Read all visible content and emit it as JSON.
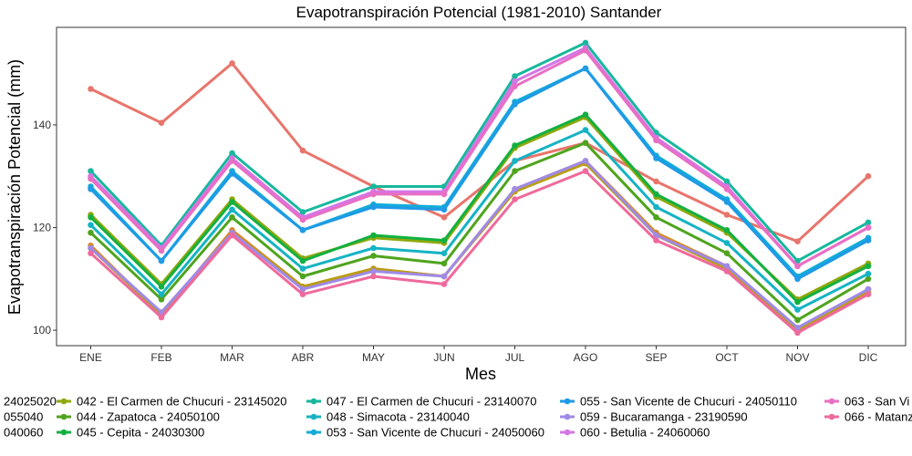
{
  "chart_data": {
    "type": "line",
    "title": "Evapotranspiración Potencial (1981-2010)  Santander",
    "xlabel": "Mes",
    "ylabel": "Evapotranspiración Potencial  (mm)",
    "categories": [
      "ENE",
      "FEB",
      "MAR",
      "ABR",
      "MAY",
      "JUN",
      "JUL",
      "AGO",
      "SEP",
      "OCT",
      "NOV",
      "DIC"
    ],
    "yticks": [
      100,
      120,
      140
    ],
    "ylim": [
      97,
      159
    ],
    "grid": false,
    "legend_position": "bottom",
    "series": [
      {
        "name": "24025020",
        "color": "#e8756c",
        "values": [
          147,
          140.4,
          152,
          135,
          128,
          122,
          133,
          136.5,
          129,
          122.5,
          117.3,
          130
        ]
      },
      {
        "name": "055040",
        "color": "#d98b27",
        "values": [
          116.5,
          103,
          119.5,
          108.5,
          112,
          110.5,
          127.5,
          133,
          119,
          112.5,
          100,
          108
        ]
      },
      {
        "name": "040060",
        "color": "#bb9d13",
        "values": [
          116,
          103,
          119,
          108.5,
          112,
          110.5,
          127,
          132.5,
          118.5,
          112,
          100,
          107.5
        ]
      },
      {
        "name": "042 - El Carmen de Chucuri - 23145020",
        "color": "#90a80e",
        "values": [
          122.5,
          109,
          125.5,
          114,
          118,
          117,
          135.5,
          141.5,
          126,
          119,
          106,
          113
        ]
      },
      {
        "name": "044 - Zapatoca - 24050100",
        "color": "#4fa41d",
        "values": [
          119,
          106,
          122,
          110.5,
          114.5,
          113,
          131,
          136.5,
          122,
          115,
          102,
          110
        ]
      },
      {
        "name": "045 - Cepita - 24030300",
        "color": "#13b041",
        "values": [
          122,
          108.5,
          125,
          113.5,
          118.5,
          117.5,
          136,
          142,
          126.5,
          119.5,
          105.5,
          112.5
        ]
      },
      {
        "name": "047 - El Carmen de Chucuri - 23140070",
        "color": "#17b89d",
        "values": [
          131,
          116.5,
          134.5,
          123,
          128,
          128,
          149.5,
          156,
          138.5,
          129,
          113.5,
          121
        ]
      },
      {
        "name": "048 - Simacota - 23140040",
        "color": "#15b3c4",
        "values": [
          120.5,
          107,
          123.5,
          112,
          116,
          115,
          133,
          139,
          124,
          117,
          104,
          111
        ]
      },
      {
        "name": "053 - San Vicente de Chucuri - 24050060",
        "color": "#12acd8",
        "values": [
          128,
          113.5,
          131,
          119.5,
          124.5,
          124,
          144.5,
          151,
          134,
          125.5,
          110.5,
          118
        ]
      },
      {
        "name": "055 - San Vicente de Chucuri - 24050110",
        "color": "#1f9ae6",
        "values": [
          127.5,
          113.5,
          130.5,
          119.5,
          124,
          123.5,
          144,
          151,
          133.5,
          125,
          110,
          117.5
        ]
      },
      {
        "name": "059 - Bucaramanga - 23190590",
        "color": "#9f8ae8",
        "values": [
          116,
          103.5,
          119,
          108,
          111.5,
          110.5,
          127.5,
          133,
          118.5,
          112.5,
          100.5,
          108
        ]
      },
      {
        "name": "060 - Betulia - 24060060",
        "color": "#d476e6",
        "values": [
          130,
          116,
          133.5,
          122,
          127,
          127,
          148.5,
          155,
          137.5,
          128,
          112.5,
          120
        ]
      },
      {
        "name": "063 - San Vi",
        "color": "#e86ec5",
        "values": [
          129.5,
          115.5,
          133,
          121.5,
          126.5,
          126.5,
          147.5,
          154.5,
          137,
          127.5,
          112.5,
          120
        ]
      },
      {
        "name": "066 - Matanz",
        "color": "#ee6a9c",
        "values": [
          115,
          102.5,
          118.5,
          107,
          110.5,
          109,
          125.5,
          131,
          117.5,
          111.5,
          99.5,
          107
        ]
      }
    ]
  },
  "legend_columns": [
    {
      "x": -18,
      "items": [
        0,
        1,
        2
      ]
    },
    {
      "x": 62,
      "items": [
        3,
        4,
        5
      ]
    },
    {
      "x": 336,
      "items": [
        6,
        7,
        8
      ]
    },
    {
      "x": 614,
      "items": [
        9,
        10,
        11
      ]
    },
    {
      "x": 904,
      "items": [
        12,
        13
      ]
    }
  ]
}
